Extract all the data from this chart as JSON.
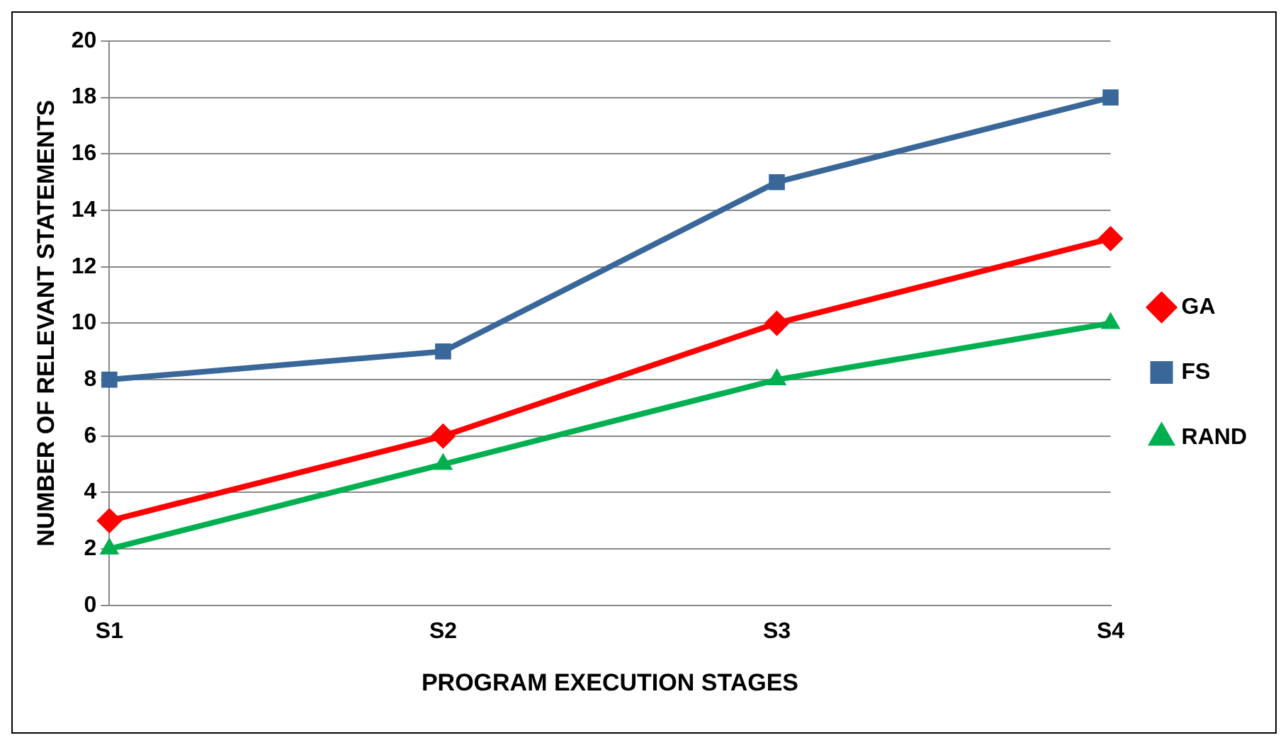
{
  "chart_data": {
    "type": "line",
    "xlabel": "PROGRAM EXECUTION STAGES",
    "ylabel": "NUMBER OF RELEVANT STATEMENTS",
    "categories": [
      "S1",
      "S2",
      "S3",
      "S4"
    ],
    "series": [
      {
        "name": "GA",
        "color": "#ff0000",
        "marker": "diamond",
        "values": [
          3,
          6,
          10,
          13
        ]
      },
      {
        "name": "FS",
        "color": "#3a6799",
        "marker": "square",
        "values": [
          8,
          9,
          15,
          18
        ]
      },
      {
        "name": "RAND",
        "color": "#00b050",
        "marker": "triangle",
        "values": [
          2,
          5,
          8,
          10
        ]
      }
    ],
    "ylim": [
      0,
      20
    ],
    "yticks": [
      0,
      2,
      4,
      6,
      8,
      10,
      12,
      14,
      16,
      18,
      20
    ],
    "grid": "y",
    "legend": "right",
    "line_style": "solid"
  }
}
